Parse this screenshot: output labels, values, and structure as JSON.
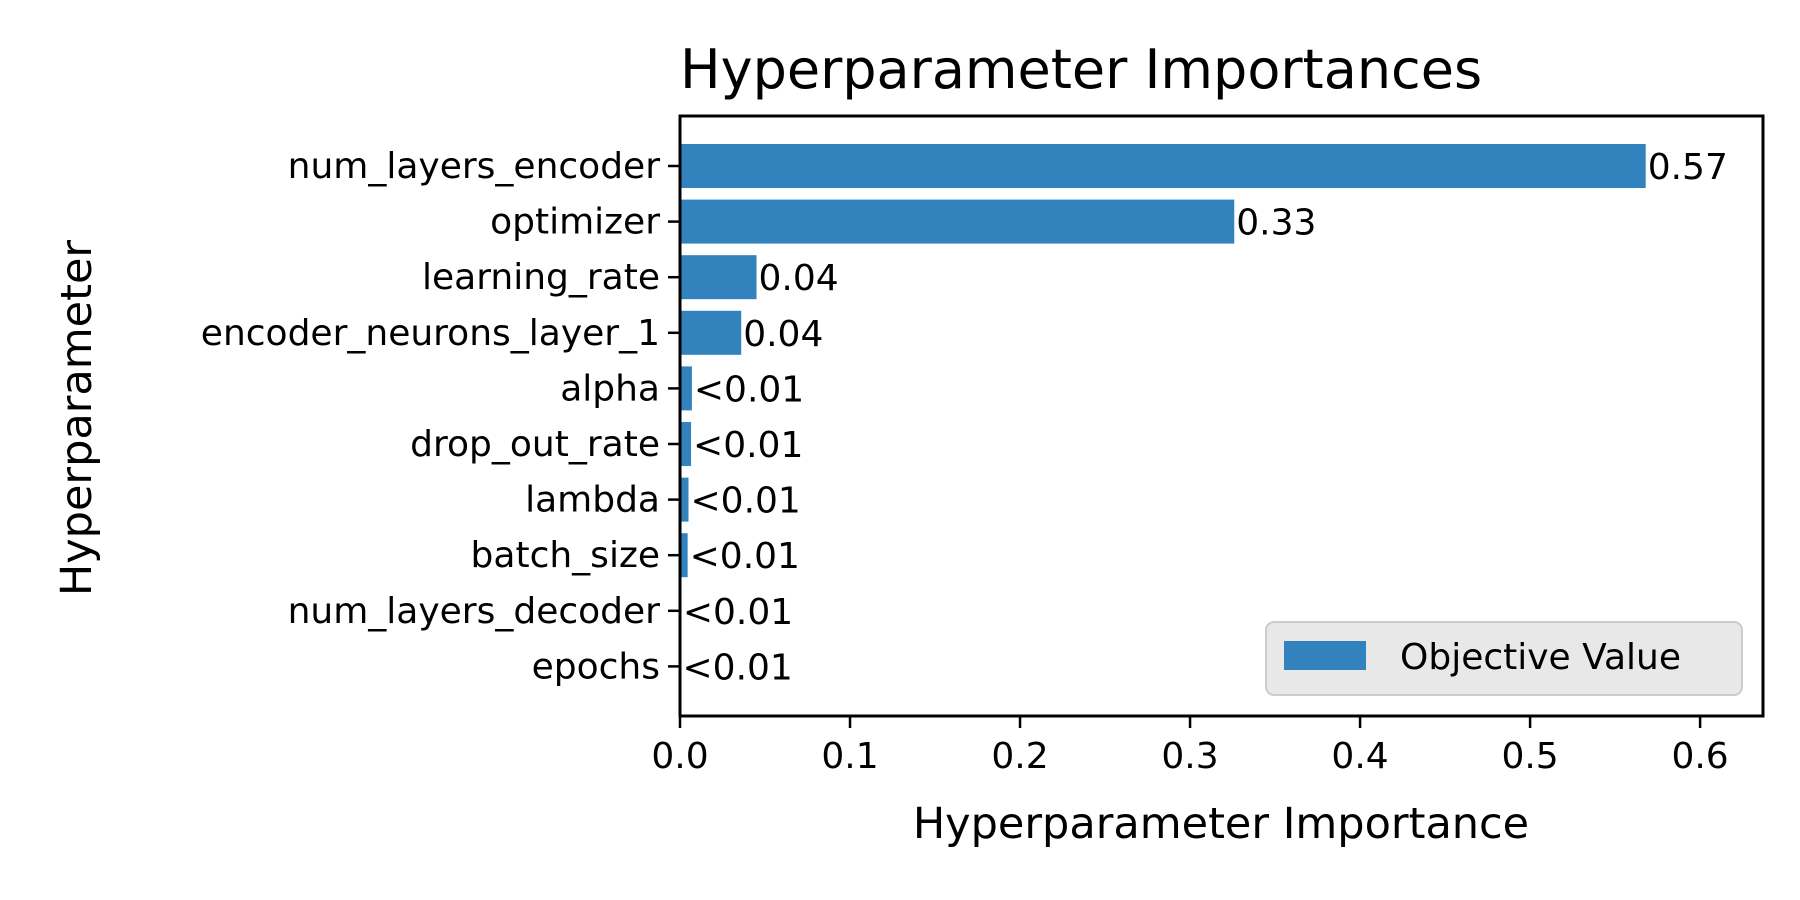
{
  "chart_data": {
    "type": "bar",
    "orientation": "horizontal",
    "title": "Hyperparameter Importances",
    "xlabel": "Hyperparameter Importance",
    "ylabel": "Hyperparameter",
    "categories": [
      "num_layers_encoder",
      "optimizer",
      "learning_rate",
      "encoder_neurons_layer_1",
      "alpha",
      "drop_out_rate",
      "lambda",
      "batch_size",
      "num_layers_decoder",
      "epochs"
    ],
    "series": [
      {
        "name": "Objective Value",
        "values": [
          0.568,
          0.326,
          0.045,
          0.036,
          0.007,
          0.0065,
          0.005,
          0.0045,
          0.0005,
          0.0003
        ],
        "labels": [
          "0.57",
          "0.33",
          "0.04",
          "0.04",
          "<0.01",
          "<0.01",
          "<0.01",
          "<0.01",
          "<0.01",
          "<0.01"
        ]
      }
    ],
    "xlim": [
      0,
      0.637
    ],
    "xticks": [
      0.0,
      0.1,
      0.2,
      0.3,
      0.4,
      0.5,
      0.6
    ],
    "xtick_labels": [
      "0.0",
      "0.1",
      "0.2",
      "0.3",
      "0.4",
      "0.5",
      "0.6"
    ],
    "grid": false,
    "legend_position": "lower right",
    "colors": {
      "bar": "#3282bd",
      "legend_bg": "#e8e8e8",
      "legend_border": "#cccccc"
    }
  }
}
